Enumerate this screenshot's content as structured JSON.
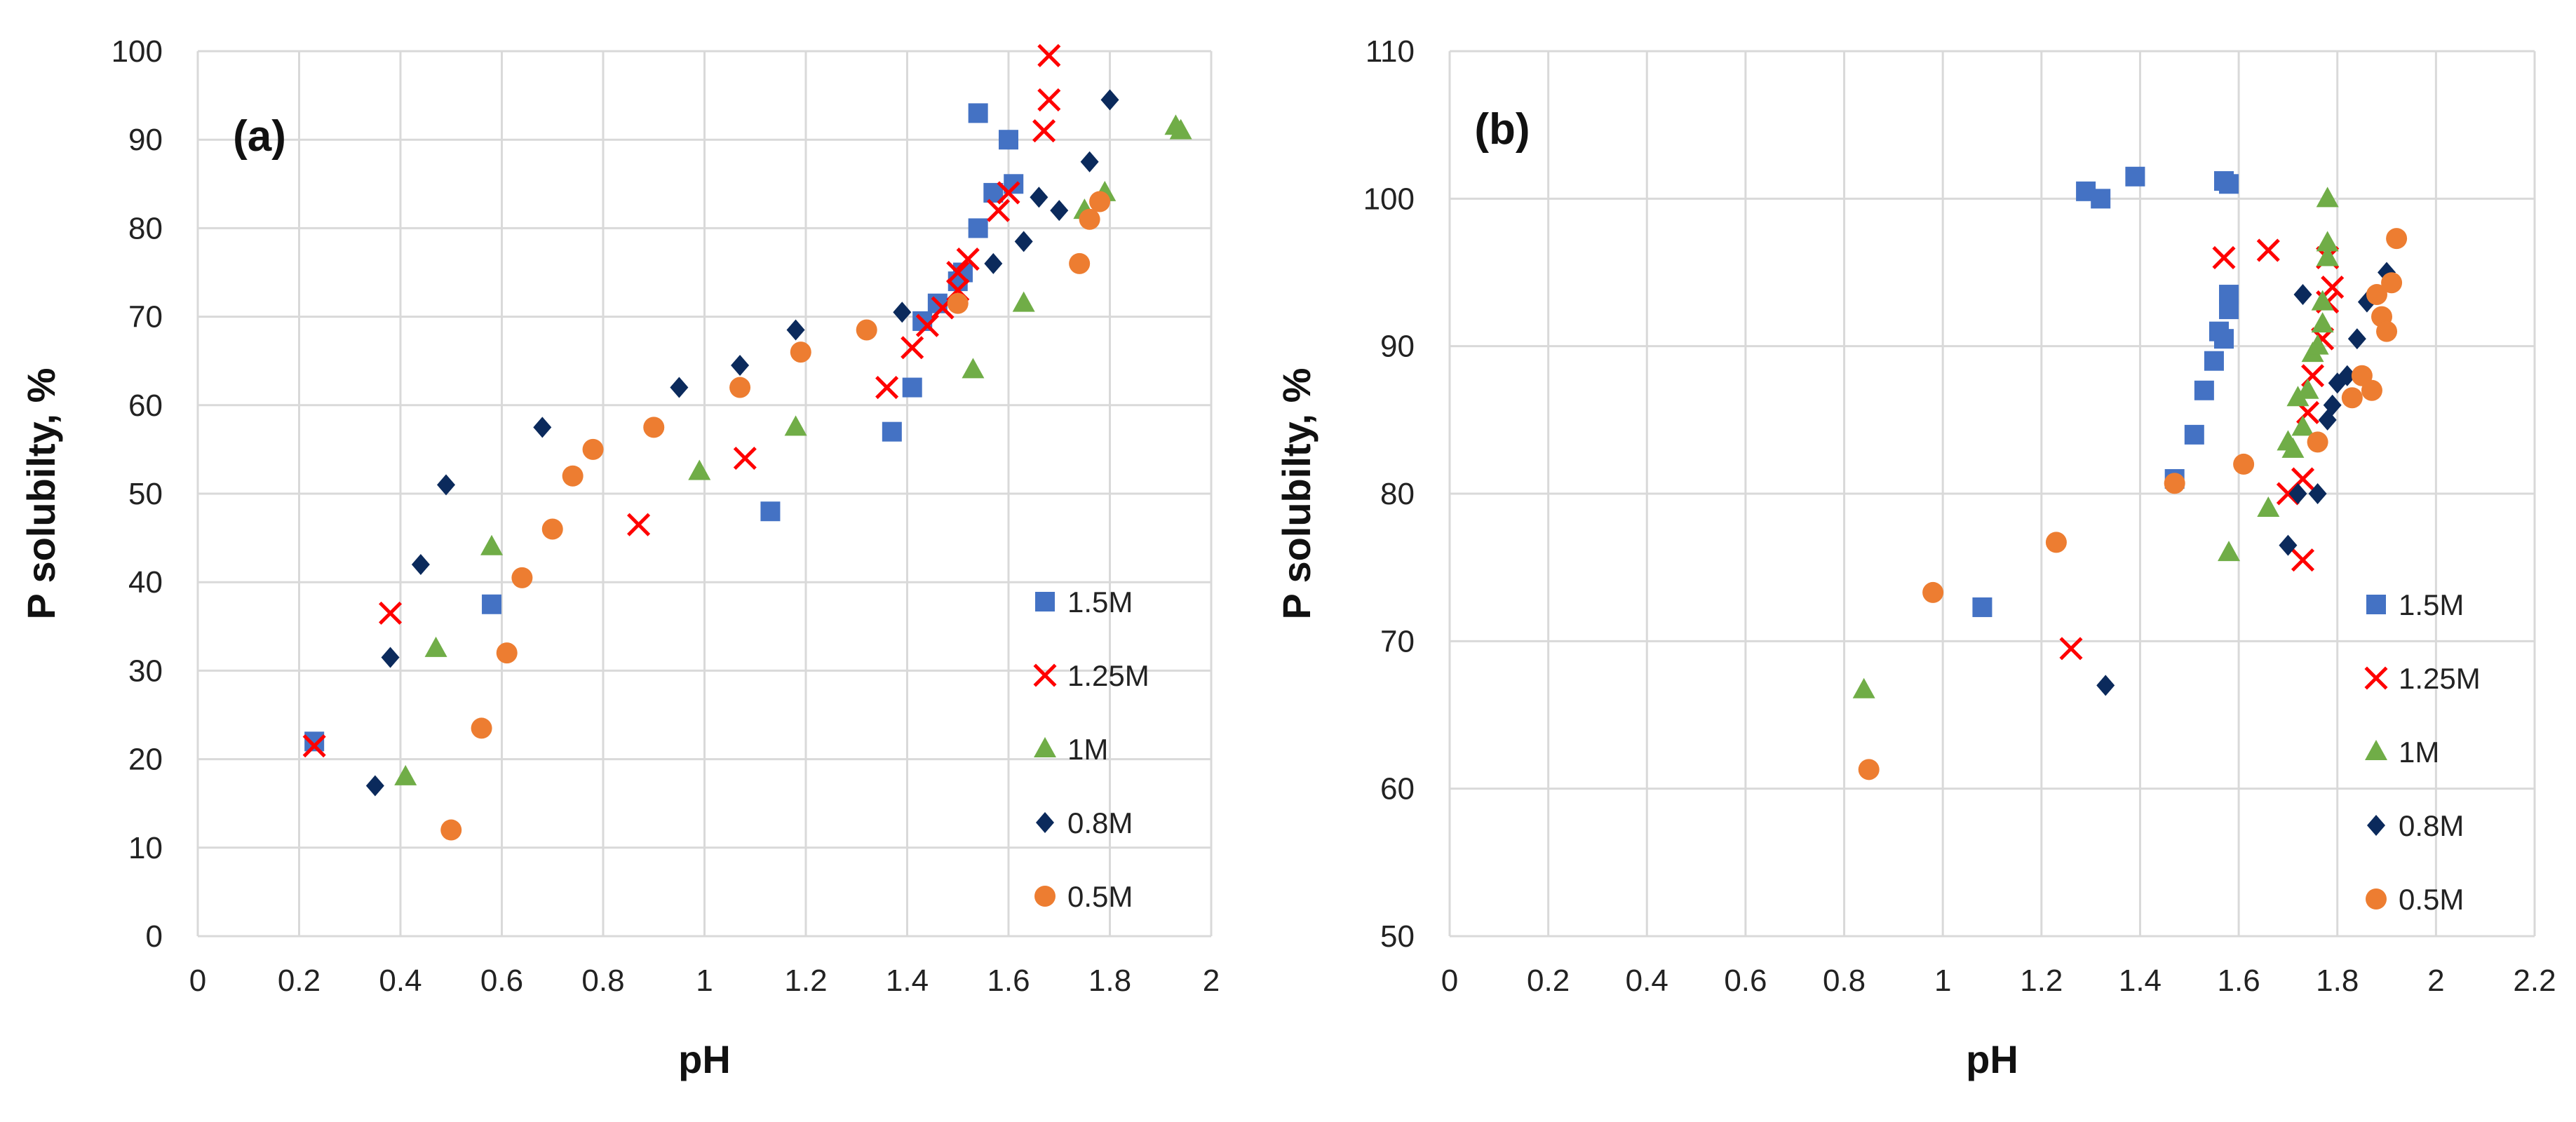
{
  "colors": {
    "s15": "#4472C4",
    "s125": "#FF0000",
    "s1": "#70AD47",
    "s08": "#0B2A5C",
    "s05": "#ED7D31",
    "grid": "#D9D9D9"
  },
  "chart_data": [
    {
      "type": "scatter",
      "panel_label": "(a)",
      "xlabel": "pH",
      "ylabel": "P solubilty, %",
      "xlim": [
        0,
        2
      ],
      "ylim": [
        0,
        100
      ],
      "x_ticks": [
        "0",
        "0.2",
        "0.4",
        "0.6",
        "0.8",
        "1",
        "1.2",
        "1.4",
        "1.6",
        "1.8",
        "2"
      ],
      "y_ticks": [
        "0",
        "10",
        "20",
        "30",
        "40",
        "50",
        "60",
        "70",
        "80",
        "90",
        "100"
      ],
      "legend_position": "bottom-right",
      "series": [
        {
          "name": "1.5M",
          "marker": "square",
          "color": "#4472C4",
          "points": [
            [
              0.23,
              22
            ],
            [
              0.58,
              37.5
            ],
            [
              1.13,
              48
            ],
            [
              1.37,
              57
            ],
            [
              1.41,
              62
            ],
            [
              1.43,
              69.5
            ],
            [
              1.46,
              71.5
            ],
            [
              1.5,
              74
            ],
            [
              1.51,
              75
            ],
            [
              1.54,
              80
            ],
            [
              1.57,
              84
            ],
            [
              1.61,
              85
            ],
            [
              1.54,
              93
            ],
            [
              1.6,
              90
            ]
          ]
        },
        {
          "name": "1.25M",
          "marker": "x",
          "color": "#FF0000",
          "points": [
            [
              0.23,
              21.5
            ],
            [
              0.38,
              36.5
            ],
            [
              0.87,
              46.5
            ],
            [
              1.08,
              54
            ],
            [
              1.36,
              62
            ],
            [
              1.41,
              66.5
            ],
            [
              1.44,
              69
            ],
            [
              1.47,
              71
            ],
            [
              1.5,
              73
            ],
            [
              1.5,
              75
            ],
            [
              1.52,
              76.5
            ],
            [
              1.58,
              82
            ],
            [
              1.6,
              84
            ],
            [
              1.67,
              91
            ],
            [
              1.68,
              94.5
            ],
            [
              1.68,
              99.5
            ]
          ]
        },
        {
          "name": "1M",
          "marker": "triangle",
          "color": "#70AD47",
          "points": [
            [
              0.41,
              18
            ],
            [
              0.47,
              32.5
            ],
            [
              0.58,
              44
            ],
            [
              0.99,
              52.5
            ],
            [
              1.18,
              57.5
            ],
            [
              1.53,
              64
            ],
            [
              1.63,
              71.5
            ],
            [
              1.75,
              82
            ],
            [
              1.79,
              84
            ],
            [
              1.93,
              91.5
            ],
            [
              1.94,
              91
            ]
          ]
        },
        {
          "name": "0.8M",
          "marker": "diamond",
          "color": "#0B2A5C",
          "points": [
            [
              0.35,
              17
            ],
            [
              0.38,
              31.5
            ],
            [
              0.44,
              42
            ],
            [
              0.49,
              51
            ],
            [
              0.68,
              57.5
            ],
            [
              0.95,
              62
            ],
            [
              1.07,
              64.5
            ],
            [
              1.18,
              68.5
            ],
            [
              1.39,
              70.5
            ],
            [
              1.57,
              76
            ],
            [
              1.63,
              78.5
            ],
            [
              1.66,
              83.5
            ],
            [
              1.7,
              82
            ],
            [
              1.76,
              87.5
            ],
            [
              1.8,
              94.5
            ]
          ]
        },
        {
          "name": "0.5M",
          "marker": "circle",
          "color": "#ED7D31",
          "points": [
            [
              0.5,
              12
            ],
            [
              0.56,
              23.5
            ],
            [
              0.61,
              32
            ],
            [
              0.64,
              40.5
            ],
            [
              0.7,
              46
            ],
            [
              0.74,
              52
            ],
            [
              0.78,
              55
            ],
            [
              0.9,
              57.5
            ],
            [
              1.07,
              62
            ],
            [
              1.19,
              66
            ],
            [
              1.32,
              68.5
            ],
            [
              1.5,
              71.5
            ],
            [
              1.74,
              76
            ],
            [
              1.76,
              81
            ],
            [
              1.78,
              83
            ]
          ]
        }
      ]
    },
    {
      "type": "scatter",
      "panel_label": "(b)",
      "xlabel": "pH",
      "ylabel": "P solubilty, %",
      "xlim": [
        0,
        2.2
      ],
      "ylim": [
        50,
        110
      ],
      "x_ticks": [
        "0",
        "0.2",
        "0.4",
        "0.6",
        "0.8",
        "1",
        "1.2",
        "1.4",
        "1.6",
        "1.8",
        "2",
        "2.2"
      ],
      "y_ticks": [
        "50",
        "60",
        "70",
        "80",
        "90",
        "100",
        "110"
      ],
      "legend_position": "bottom-right",
      "series": [
        {
          "name": "1.5M",
          "marker": "square",
          "color": "#4472C4",
          "points": [
            [
              1.08,
              72.3
            ],
            [
              1.29,
              100.5
            ],
            [
              1.32,
              100
            ],
            [
              1.39,
              101.5
            ],
            [
              1.47,
              81
            ],
            [
              1.51,
              84
            ],
            [
              1.53,
              87
            ],
            [
              1.55,
              89
            ],
            [
              1.56,
              91
            ],
            [
              1.57,
              90.5
            ],
            [
              1.58,
              92.5
            ],
            [
              1.58,
              93.5
            ],
            [
              1.58,
              101
            ],
            [
              1.57,
              101.2
            ]
          ]
        },
        {
          "name": "1.25M",
          "marker": "x",
          "color": "#FF0000",
          "points": [
            [
              1.26,
              69.5
            ],
            [
              1.57,
              96
            ],
            [
              1.66,
              96.5
            ],
            [
              1.7,
              80
            ],
            [
              1.73,
              75.5
            ],
            [
              1.73,
              81
            ],
            [
              1.74,
              85.5
            ],
            [
              1.75,
              88
            ],
            [
              1.77,
              90.5
            ],
            [
              1.78,
              93
            ],
            [
              1.79,
              94
            ],
            [
              1.78,
              96
            ]
          ]
        },
        {
          "name": "1M",
          "marker": "triangle",
          "color": "#70AD47",
          "points": [
            [
              0.84,
              66.7
            ],
            [
              1.58,
              76
            ],
            [
              1.66,
              79
            ],
            [
              1.7,
              83.5
            ],
            [
              1.71,
              83
            ],
            [
              1.72,
              86.5
            ],
            [
              1.73,
              84.5
            ],
            [
              1.74,
              87
            ],
            [
              1.75,
              89.5
            ],
            [
              1.76,
              90
            ],
            [
              1.77,
              91.5
            ],
            [
              1.77,
              93
            ],
            [
              1.78,
              96
            ],
            [
              1.78,
              97
            ],
            [
              1.78,
              100
            ]
          ]
        },
        {
          "name": "0.8M",
          "marker": "diamond",
          "color": "#0B2A5C",
          "points": [
            [
              1.33,
              67
            ],
            [
              1.7,
              76.5
            ],
            [
              1.72,
              80
            ],
            [
              1.76,
              80
            ],
            [
              1.73,
              93.5
            ],
            [
              1.78,
              85
            ],
            [
              1.79,
              86
            ],
            [
              1.8,
              87.5
            ],
            [
              1.82,
              88
            ],
            [
              1.84,
              90.5
            ],
            [
              1.86,
              93
            ],
            [
              1.9,
              95
            ]
          ]
        },
        {
          "name": "0.5M",
          "marker": "circle",
          "color": "#ED7D31",
          "points": [
            [
              0.85,
              61.3
            ],
            [
              0.98,
              73.3
            ],
            [
              1.23,
              76.7
            ],
            [
              1.47,
              80.7
            ],
            [
              1.61,
              82
            ],
            [
              1.76,
              83.5
            ],
            [
              1.83,
              86.5
            ],
            [
              1.85,
              88
            ],
            [
              1.87,
              87
            ],
            [
              1.88,
              93.5
            ],
            [
              1.89,
              92
            ],
            [
              1.9,
              91
            ],
            [
              1.91,
              94.3
            ],
            [
              1.92,
              97.3
            ]
          ]
        }
      ]
    }
  ]
}
